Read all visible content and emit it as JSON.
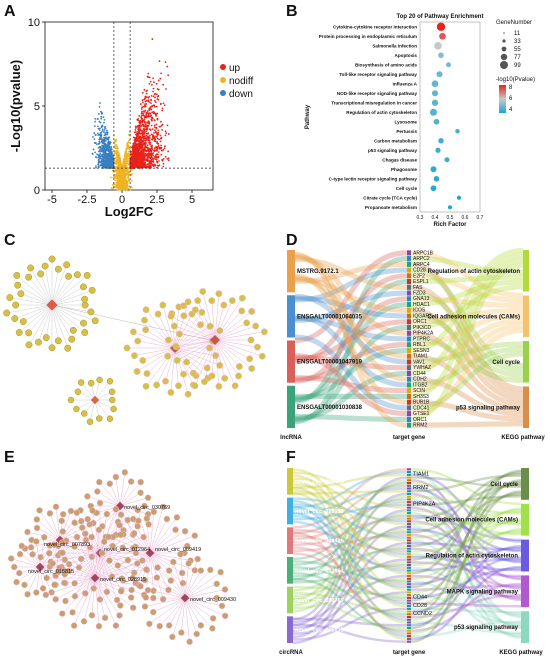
{
  "panels": {
    "a": {
      "letter": "A",
      "legend": [
        {
          "label": "up",
          "color": "#e8231a"
        },
        {
          "label": "nodiff",
          "color": "#f0b323"
        },
        {
          "label": "down",
          "color": "#3a7fc0"
        }
      ]
    },
    "b": {
      "letter": "B"
    },
    "c": {
      "letter": "C"
    },
    "d": {
      "letter": "D",
      "axis_labels": [
        "lncRNA",
        "target gene",
        "KEGG pathway"
      ],
      "sources": [
        {
          "label": "MSTRG.9172.1",
          "color": "#e8a04a"
        },
        {
          "label": "ENSGALT00001064035",
          "color": "#4c8fcf"
        },
        {
          "label": "ENSGALT00001047919",
          "color": "#d9605a"
        },
        {
          "label": "ENSGALT00001030838",
          "color": "#3aa37a"
        }
      ],
      "genes": [
        "ARPC1B",
        "ARPC2",
        "ARPC4",
        "CD28",
        "E2F2",
        "ESPL1",
        "FAS",
        "FZD3",
        "GNA13",
        "HDAC1",
        "ICOS",
        "IQGAP3",
        "ORC1",
        "PIK3CD",
        "PIP4K2A",
        "PTPRC",
        "RBL1",
        "SESN3",
        "TIAM1",
        "VAV1",
        "YWHAZ",
        "CD44",
        "CDH2",
        "ITGB2",
        "SCIN",
        "SH3S3",
        "BUB1B",
        "CDC41",
        "GTSE1",
        "ORC1",
        "RRM2"
      ],
      "pathways": [
        {
          "label": "Regulation of actin cytoskeleton",
          "color": "#b4d93a"
        },
        {
          "label": "Cell adhesion molecules (CAMs)",
          "color": "#f5c26b"
        },
        {
          "label": "Cell cycle",
          "color": "#9ad14b"
        },
        {
          "label": "p53 signaling pathway",
          "color": "#d98f4a"
        }
      ]
    },
    "e": {
      "letter": "E",
      "hubs": [
        "novel_circ_030769",
        "novel_circ_007893",
        "novel_circ_015815",
        "novel_circ_012964",
        "novel_circ_028915",
        "novel_circ_009419",
        "novel_circ_009430"
      ]
    },
    "f": {
      "letter": "F",
      "axis_labels": [
        "circRNA",
        "target gene",
        "KEGG pathway"
      ],
      "sources": [
        {
          "label": "novel_circ_009430",
          "color": "#c9c93a"
        },
        {
          "label": "novel_circ_028915",
          "color": "#3fb0e0"
        },
        {
          "label": "novel_circ_009419",
          "color": "#e07a7a"
        },
        {
          "label": "novel_circ_012964",
          "color": "#4caf78"
        },
        {
          "label": "novel_circ_030769",
          "color": "#a0d060"
        },
        {
          "label": "novel_circ_015815",
          "color": "#8a6ad0"
        }
      ],
      "genes": [
        "TIAM1",
        "RRM2",
        "PIP4K2A",
        "CD44",
        "CD28",
        "CCND2"
      ],
      "pathways": [
        {
          "label": "Cell cycle",
          "color": "#6b8f4a"
        },
        {
          "label": "Cell adhesion molecules (CAMs)",
          "color": "#a0e04a"
        },
        {
          "label": "Regulation of actin cytoskeleton",
          "color": "#6a5ae0"
        },
        {
          "label": "MAPK signaling pathway",
          "color": "#b05ad0"
        },
        {
          "label": "p53 signaling pathway",
          "color": "#8fd8c0"
        }
      ]
    }
  },
  "chart_data": [
    {
      "type": "scatter",
      "title": "",
      "xlabel": "Log2FC",
      "ylabel": "-Log10(pvalue)",
      "xlim": [
        -5.5,
        6.5
      ],
      "ylim": [
        0,
        10
      ],
      "xticks": [
        "-5",
        "-2.5",
        "0",
        "2.5",
        "5"
      ],
      "yticks": [
        "0",
        "5",
        "10"
      ],
      "thresholds": {
        "x": [
          -0.58,
          0.58
        ],
        "y": 1.3
      },
      "series": [
        {
          "name": "up",
          "color": "#e8231a"
        },
        {
          "name": "nodiff",
          "color": "#f0b323"
        },
        {
          "name": "down",
          "color": "#3a7fc0"
        }
      ]
    },
    {
      "type": "scatter",
      "title": "Top 20 of Pathway Enrichment",
      "xlabel": "Rich Factor",
      "ylabel": "Pathway",
      "xlim": [
        0.3,
        0.7
      ],
      "xticks": [
        "0.3",
        "0.4",
        "0.5",
        "0.6",
        "0.7"
      ],
      "size_legend_title": "GeneNumber",
      "size_legend": [
        "11",
        "33",
        "55",
        "77",
        "99"
      ],
      "color_legend_title": "-log10(Pvalue)",
      "color_legend_ticks": [
        "8",
        "6",
        "4"
      ],
      "categories": [
        "Cytokine-cytokine receptor interaction",
        "Protein processing in endoplasmic reticulum",
        "Salmonella infection",
        "Apoptosis",
        "Biosynthesis of amino acids",
        "Toll-like receptor signaling pathway",
        "Influenza A",
        "NOD-like receptor signaling pathway",
        "Transcriptional misregulation in cancer",
        "Regulation of actin cytoskeleton",
        "Lysosome",
        "Pertussis",
        "Carbon metabolism",
        "p53 signaling pathway",
        "Chagas disease",
        "Phagosome",
        "C-type lectin receptor signaling pathway",
        "Cell cycle",
        "Citrate cycle (TCA cycle)",
        "Propanoate metabolism"
      ],
      "points": [
        {
          "rich": 0.44,
          "genes": 99,
          "logp": 8.5
        },
        {
          "rich": 0.45,
          "genes": 55,
          "logp": 7.5
        },
        {
          "rich": 0.42,
          "genes": 77,
          "logp": 5.5
        },
        {
          "rich": 0.44,
          "genes": 33,
          "logp": 4.5
        },
        {
          "rich": 0.49,
          "genes": 22,
          "logp": 4.2
        },
        {
          "rich": 0.43,
          "genes": 40,
          "logp": 4.0
        },
        {
          "rich": 0.4,
          "genes": 55,
          "logp": 3.9
        },
        {
          "rich": 0.4,
          "genes": 40,
          "logp": 3.8
        },
        {
          "rich": 0.4,
          "genes": 45,
          "logp": 3.7
        },
        {
          "rich": 0.39,
          "genes": 60,
          "logp": 3.6
        },
        {
          "rich": 0.41,
          "genes": 35,
          "logp": 3.5
        },
        {
          "rich": 0.55,
          "genes": 15,
          "logp": 3.4
        },
        {
          "rich": 0.44,
          "genes": 30,
          "logp": 3.3
        },
        {
          "rich": 0.42,
          "genes": 25,
          "logp": 3.2
        },
        {
          "rich": 0.48,
          "genes": 22,
          "logp": 3.1
        },
        {
          "rich": 0.39,
          "genes": 40,
          "logp": 3.0
        },
        {
          "rich": 0.41,
          "genes": 30,
          "logp": 2.9
        },
        {
          "rich": 0.39,
          "genes": 35,
          "logp": 2.8
        },
        {
          "rich": 0.56,
          "genes": 12,
          "logp": 2.7
        },
        {
          "rich": 0.5,
          "genes": 11,
          "logp": 2.6
        }
      ]
    }
  ]
}
